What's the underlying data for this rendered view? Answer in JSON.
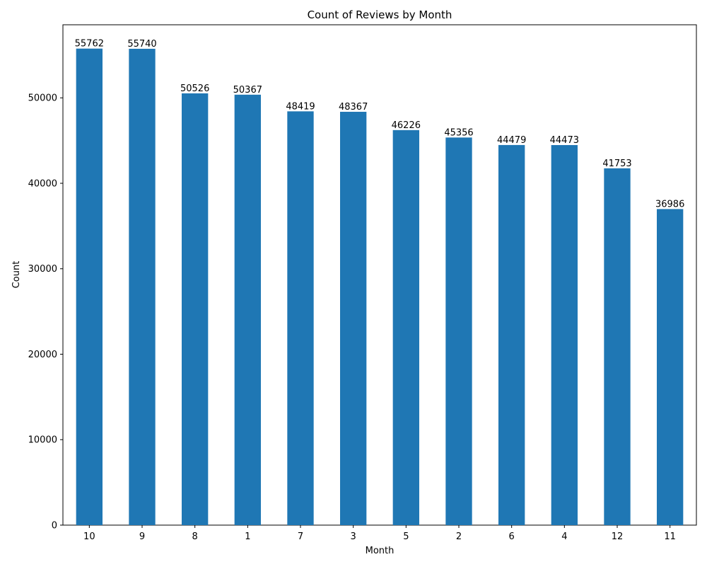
{
  "chart_data": {
    "type": "bar",
    "title": "Count of Reviews by Month",
    "xlabel": "Month",
    "ylabel": "Count",
    "categories": [
      "10",
      "9",
      "8",
      "1",
      "7",
      "3",
      "5",
      "2",
      "6",
      "4",
      "12",
      "11"
    ],
    "values": [
      55762,
      55740,
      50526,
      50367,
      48419,
      48367,
      46226,
      45356,
      44479,
      44473,
      41753,
      36986
    ],
    "data_labels": [
      "55762",
      "55740",
      "50526",
      "50367",
      "48419",
      "48367",
      "46226",
      "45356",
      "44479",
      "44473",
      "41753",
      "36986"
    ],
    "ylim": [
      0,
      58550
    ],
    "yticks": [
      0,
      10000,
      20000,
      30000,
      40000,
      50000
    ],
    "ytick_labels": [
      "0",
      "10000",
      "20000",
      "30000",
      "40000",
      "50000"
    ],
    "bar_color": "#1f77b4",
    "grid": false,
    "legend": "none"
  }
}
